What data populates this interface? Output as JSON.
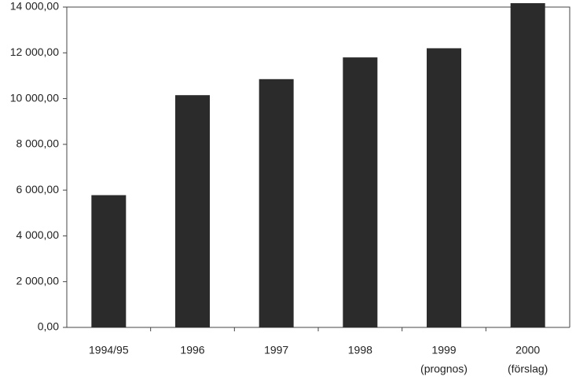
{
  "chart_data": {
    "type": "bar",
    "categories": [
      "1994/95",
      "1996",
      "1997",
      "1998",
      "1999",
      "2000"
    ],
    "category_notes": [
      null,
      null,
      null,
      null,
      "(prognos)",
      "(förslag)"
    ],
    "values": [
      5780,
      10150,
      10850,
      11800,
      12200,
      14170
    ],
    "color": "#2b2b2b",
    "ylim": [
      0,
      14000
    ],
    "yticks": [
      {
        "value": 0,
        "label": "0,00"
      },
      {
        "value": 2000,
        "label": "2 000,00"
      },
      {
        "value": 4000,
        "label": "4 000,00"
      },
      {
        "value": 6000,
        "label": "6 000,00"
      },
      {
        "value": 8000,
        "label": "8 000,00"
      },
      {
        "value": 10000,
        "label": "10 000,00"
      },
      {
        "value": 12000,
        "label": "12 000,00"
      },
      {
        "value": 14000,
        "label": "14 000,00"
      }
    ],
    "grid": false
  }
}
